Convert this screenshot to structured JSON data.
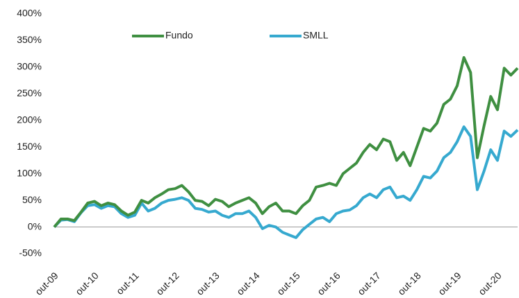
{
  "chart_data": {
    "type": "line",
    "categories": [
      "out-09",
      null,
      null,
      null,
      null,
      null,
      "out-10",
      null,
      null,
      null,
      null,
      null,
      "out-11",
      null,
      null,
      null,
      null,
      null,
      "out-12",
      null,
      null,
      null,
      null,
      null,
      "out-13",
      null,
      null,
      null,
      null,
      null,
      "out-14",
      null,
      null,
      null,
      null,
      null,
      "out-15",
      null,
      null,
      null,
      null,
      null,
      "out-16",
      null,
      null,
      null,
      null,
      null,
      "out-17",
      null,
      null,
      null,
      null,
      null,
      "out-18",
      null,
      null,
      null,
      null,
      null,
      "out-19",
      null,
      null,
      null,
      null,
      null,
      "out-20",
      null,
      null,
      null
    ],
    "series": [
      {
        "name": "Fundo",
        "color": "#3f8f41",
        "values": [
          0,
          15,
          15,
          12,
          28,
          45,
          48,
          40,
          45,
          42,
          30,
          22,
          28,
          50,
          45,
          55,
          62,
          70,
          72,
          78,
          66,
          50,
          48,
          40,
          52,
          48,
          38,
          45,
          50,
          55,
          45,
          25,
          38,
          45,
          30,
          30,
          25,
          40,
          50,
          75,
          78,
          82,
          78,
          100,
          110,
          120,
          140,
          155,
          145,
          165,
          160,
          125,
          140,
          115,
          150,
          185,
          180,
          195,
          230,
          240,
          265,
          318,
          290,
          130,
          190,
          245,
          220,
          298,
          285,
          298
        ]
      },
      {
        "name": "SMLL",
        "color": "#36a9cf",
        "values": [
          0,
          13,
          14,
          10,
          27,
          40,
          42,
          35,
          40,
          38,
          25,
          18,
          22,
          45,
          30,
          35,
          45,
          50,
          52,
          55,
          50,
          35,
          33,
          28,
          30,
          22,
          18,
          25,
          25,
          30,
          18,
          -3,
          3,
          0,
          -10,
          -15,
          -20,
          -5,
          5,
          15,
          18,
          10,
          25,
          30,
          32,
          40,
          55,
          62,
          55,
          70,
          75,
          55,
          58,
          50,
          70,
          95,
          92,
          105,
          130,
          140,
          160,
          188,
          170,
          70,
          105,
          145,
          125,
          180,
          170,
          182
        ]
      }
    ],
    "ylim": [
      -50,
      400
    ],
    "yticks": [
      {
        "value": -50,
        "label": "-50%"
      },
      {
        "value": 0,
        "label": "0%"
      },
      {
        "value": 50,
        "label": "50%"
      },
      {
        "value": 100,
        "label": "100%"
      },
      {
        "value": 150,
        "label": "150%"
      },
      {
        "value": 200,
        "label": "200%"
      },
      {
        "value": 250,
        "label": "250%"
      },
      {
        "value": 300,
        "label": "300%"
      },
      {
        "value": 350,
        "label": "350%"
      },
      {
        "value": 400,
        "label": "400%"
      }
    ],
    "legend": "top"
  }
}
